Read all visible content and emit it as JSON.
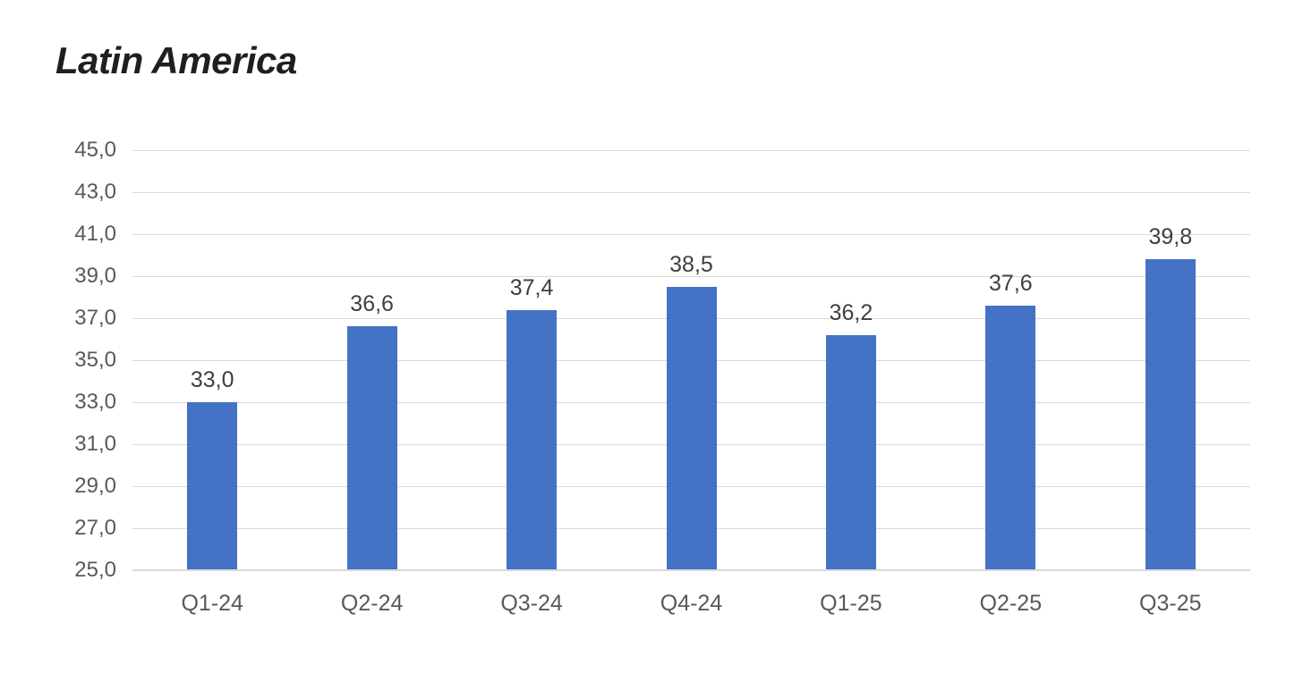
{
  "page": {
    "background_color": "#ffffff"
  },
  "chart_data": {
    "type": "bar",
    "title": "Latin America",
    "categories": [
      "Q1-24",
      "Q2-24",
      "Q3-24",
      "Q4-24",
      "Q1-25",
      "Q2-25",
      "Q3-25"
    ],
    "values": [
      33.0,
      36.6,
      37.4,
      38.5,
      36.2,
      37.6,
      39.8
    ],
    "value_labels": [
      "33,0",
      "36,6",
      "37,4",
      "38,5",
      "36,2",
      "37,6",
      "39,8"
    ],
    "xlabel": "",
    "ylabel": "",
    "ylim": [
      25,
      45
    ],
    "ytick_step": 2,
    "ytick_labels": [
      "25,0",
      "27,0",
      "29,0",
      "31,0",
      "33,0",
      "35,0",
      "37,0",
      "39,0",
      "41,0",
      "43,0",
      "45,0"
    ],
    "grid": "horizontal",
    "legend_position": "none",
    "colors": {
      "bar_fill": "#4472C4",
      "gridline": "#D9D9D9",
      "axis_line": "#D9D9D9",
      "tick_label": "#595959",
      "data_label": "#3F3F3F",
      "title": "#1F1F1F"
    }
  }
}
